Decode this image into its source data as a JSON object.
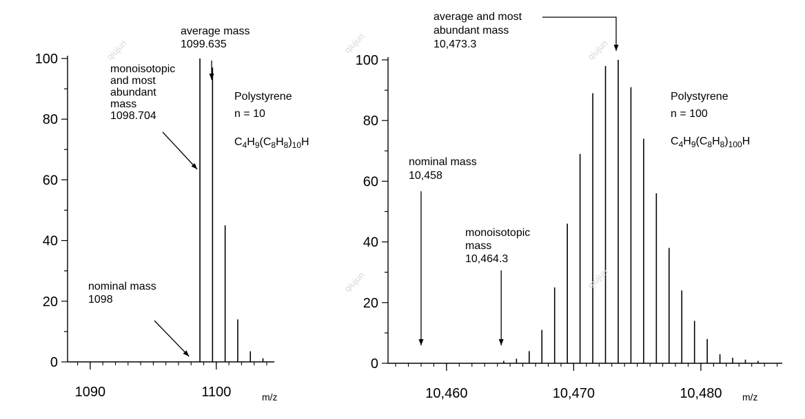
{
  "chart_data": [
    {
      "type": "bar",
      "xlabel": "m/z",
      "ylabel": "",
      "ylim": [
        0,
        100
      ],
      "yticks": [
        0,
        20,
        40,
        60,
        80,
        100
      ],
      "y_tick_labels": [
        "0",
        "20",
        "40",
        "60",
        "80",
        "100"
      ],
      "xlim": [
        1088.2,
        1104.6
      ],
      "x_tick_labels": [
        {
          "value": 1090,
          "label": "1090"
        },
        {
          "value": 1100,
          "label": "1100"
        }
      ],
      "x_minor_step": 1,
      "grid": false,
      "series": [
        {
          "x": [
            1098.7,
            1099.7,
            1100.7,
            1101.7,
            1102.7,
            1103.7
          ],
          "y": [
            100,
            97,
            45,
            14,
            3.5,
            1.2
          ]
        }
      ],
      "annotations": {
        "title_lines": [
          "Polystyrene",
          "n = 10"
        ],
        "formula": {
          "parts": [
            {
              "t": "C",
              "s": false
            },
            {
              "t": "4",
              "s": true
            },
            {
              "t": "H",
              "s": false
            },
            {
              "t": "9",
              "s": true
            },
            {
              "t": "(C",
              "s": false
            },
            {
              "t": "8",
              "s": true
            },
            {
              "t": "H",
              "s": false
            },
            {
              "t": "8",
              "s": true
            },
            {
              "t": ")",
              "s": false
            },
            {
              "t": "10",
              "s": true
            },
            {
              "t": "H",
              "s": false
            }
          ]
        },
        "average": {
          "lines": [
            "average mass",
            "1099.635"
          ],
          "x": 1099.635
        },
        "mono": {
          "lines": [
            "monoisotopic",
            "and most",
            "abundant",
            "mass",
            "1098.704"
          ],
          "x": 1098.704
        },
        "nominal": {
          "lines": [
            "nominal mass",
            "1098"
          ],
          "x": 1098
        }
      }
    },
    {
      "type": "bar",
      "xlabel": "m/z",
      "ylabel": "",
      "ylim": [
        0,
        100
      ],
      "yticks": [
        0,
        20,
        40,
        60,
        80,
        100
      ],
      "y_tick_labels": [
        "0",
        "20",
        "40",
        "60",
        "80",
        "100"
      ],
      "xlim": [
        10455.4,
        10486.4
      ],
      "x_tick_labels": [
        {
          "value": 10460,
          "label": "10,460"
        },
        {
          "value": 10470,
          "label": "10,470"
        },
        {
          "value": 10480,
          "label": "10,480"
        }
      ],
      "x_minor_step": 1,
      "grid": false,
      "series": [
        {
          "x": [
            10464.5,
            10465.5,
            10466.5,
            10467.5,
            10468.5,
            10469.5,
            10470.5,
            10471.5,
            10472.5,
            10473.5,
            10474.5,
            10475.5,
            10476.5,
            10477.5,
            10478.5,
            10479.5,
            10480.5,
            10481.5,
            10482.5,
            10483.5,
            10484.5
          ],
          "y": [
            0.8,
            1.5,
            4,
            11,
            25,
            46,
            69,
            89,
            98,
            100,
            91,
            74,
            56,
            38,
            24,
            14,
            8,
            3,
            1.8,
            1.2,
            0.8
          ]
        }
      ],
      "annotations": {
        "title_lines": [
          "Polystyrene",
          "n = 100"
        ],
        "formula": {
          "parts": [
            {
              "t": "C",
              "s": false
            },
            {
              "t": "4",
              "s": true
            },
            {
              "t": "H",
              "s": false
            },
            {
              "t": "9",
              "s": true
            },
            {
              "t": "(C",
              "s": false
            },
            {
              "t": "8",
              "s": true
            },
            {
              "t": "H",
              "s": false
            },
            {
              "t": "8",
              "s": true
            },
            {
              "t": ")",
              "s": false
            },
            {
              "t": "100",
              "s": true
            },
            {
              "t": "H",
              "s": false
            }
          ]
        },
        "average": {
          "lines": [
            "average and most",
            "abundant mass",
            "10,473.3"
          ],
          "x": 10473.3
        },
        "nominal": {
          "lines": [
            "nominal mass",
            "10,458"
          ],
          "x": 10458
        },
        "mono": {
          "lines": [
            "monoisotopic",
            "mass",
            "10,464.3"
          ],
          "x": 10464.3
        }
      }
    }
  ],
  "watermark": "qiujun"
}
